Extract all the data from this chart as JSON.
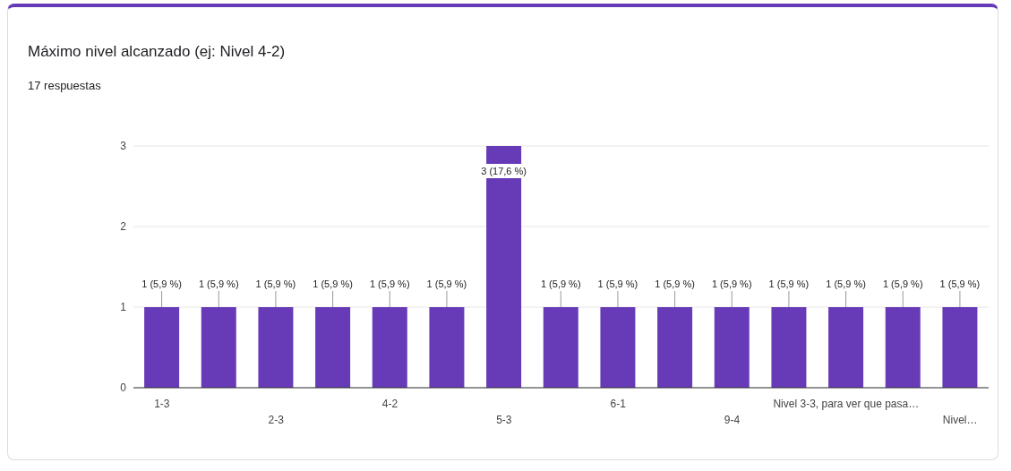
{
  "chart_data": {
    "type": "bar",
    "title": "Máximo nivel alcanzado (ej: Nivel 4-2)",
    "subtitle": "17 respuestas",
    "categories": [
      "1-3",
      null,
      "2-3",
      null,
      "4-2",
      null,
      "5-3",
      null,
      "6-1",
      null,
      "9-4",
      null,
      "Nivel 3-3, para ver que pasa…",
      null,
      "Nivel…"
    ],
    "values": [
      1,
      1,
      1,
      1,
      1,
      1,
      3,
      1,
      1,
      1,
      1,
      1,
      1,
      1,
      1
    ],
    "value_labels": [
      "1 (5,9 %)",
      "1 (5,9 %)",
      "1 (5,9 %)",
      "1 (5,9 %)",
      "1 (5,9 %)",
      "1 (5,9 %)",
      "3 (17,6 %)",
      "1 (5,9 %)",
      "1 (5,9 %)",
      "1 (5,9 %)",
      "1 (5,9 %)",
      "1 (5,9 %)",
      "1 (5,9 %)",
      "1 (5,9 %)",
      "1 (5,9 %)"
    ],
    "color": "#673ab7",
    "ylim": [
      0,
      3
    ],
    "yticks": [
      0,
      1,
      2,
      3
    ],
    "grid": "y"
  }
}
